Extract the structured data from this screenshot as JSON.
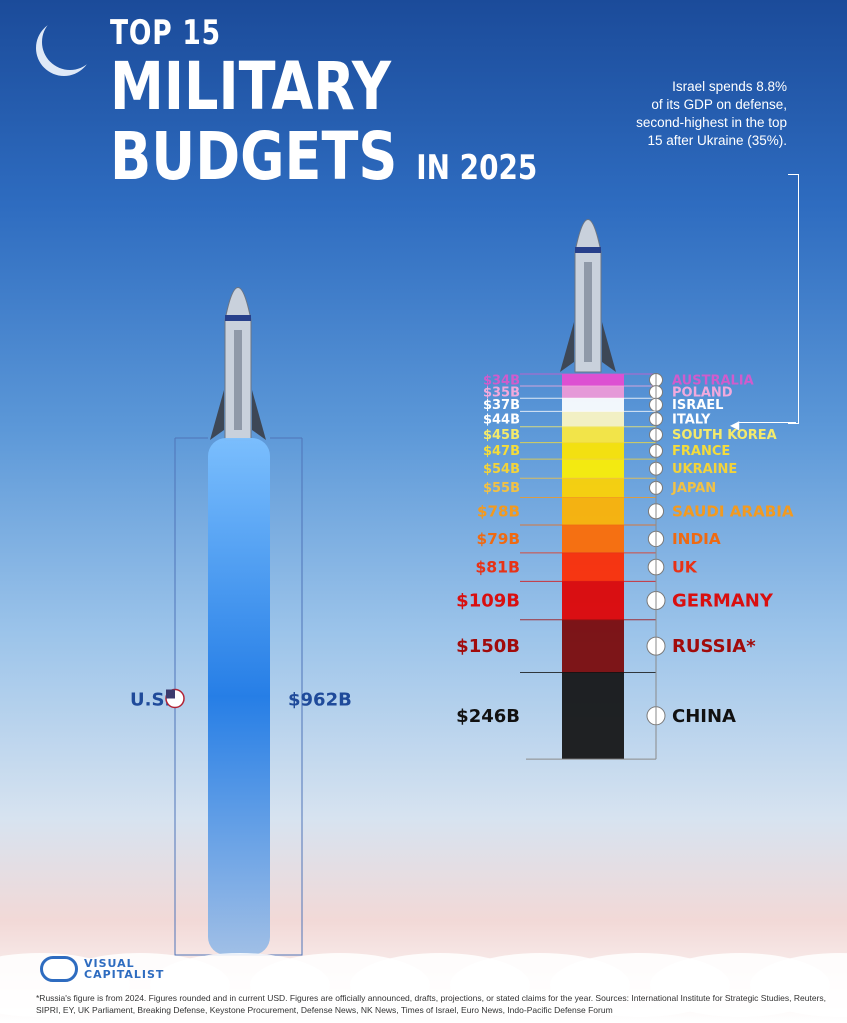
{
  "title": {
    "line1": "TOP 15",
    "line2": "MILITARY",
    "line3": "BUDGETS",
    "line3_small": "IN 2025"
  },
  "note": {
    "lines": [
      "Israel spends 8.8%",
      "of its GDP on defense,",
      "second-highest in the top",
      "15 after Ukraine (35%)."
    ]
  },
  "logo": {
    "line1": "VISUAL",
    "line2": "CAPITALIST"
  },
  "footnote": "*Russia's figure is from 2024. Figures rounded and in current USD. Figures are officially announced, drafts, projections, or stated claims for the year. Sources: International Institute for Strategic Studies, Reuters, SIPRI, EY, UK Parliament, Breaking Defense, Keystone Procurement, Defense News, NK News, Times of Israel, Euro News, Indo-Pacific Defense Forum",
  "chart_data": {
    "type": "bar",
    "unit": "USD billions",
    "us": {
      "country": "U.S.",
      "value": 962,
      "label": "$962B",
      "color": "#1f6fd6"
    },
    "stack": [
      {
        "country": "AUSTRALIA",
        "value": 34,
        "label": "$34B",
        "color": "#e94bd1"
      },
      {
        "country": "POLAND",
        "value": 35,
        "label": "$35B",
        "color": "#f29ad8"
      },
      {
        "country": "ISRAEL",
        "value": 37,
        "label": "$37B",
        "color": "#ffffff"
      },
      {
        "country": "ITALY",
        "value": 44,
        "label": "$44B",
        "color": "#fff7c2"
      },
      {
        "country": "SOUTH KOREA",
        "value": 45,
        "label": "$45B",
        "color": "#ffea3d"
      },
      {
        "country": "FRANCE",
        "value": 47,
        "label": "$47B",
        "color": "#ffe600"
      },
      {
        "country": "UKRAINE",
        "value": 54,
        "label": "$54B",
        "color": "#fff000"
      },
      {
        "country": "JAPAN",
        "value": 55,
        "label": "$55B",
        "color": "#ffd200"
      },
      {
        "country": "SAUDI ARABIA",
        "value": 78,
        "label": "$78B",
        "color": "#ffb300"
      },
      {
        "country": "INDIA",
        "value": 79,
        "label": "$79B",
        "color": "#ff6a00"
      },
      {
        "country": "UK",
        "value": 81,
        "label": "$81B",
        "color": "#ff2a00"
      },
      {
        "country": "GERMANY",
        "value": 109,
        "label": "$109B",
        "color": "#e00000"
      },
      {
        "country": "RUSSIA",
        "value": 150,
        "label": "$150B",
        "color": "#7a0505",
        "mark": "*"
      },
      {
        "country": "CHINA",
        "value": 246,
        "label": "$246B",
        "color": "#111111"
      }
    ],
    "label_colors": {
      "AUSTRALIA": "#d05ccc",
      "POLAND": "#f2a9dd",
      "ISRAEL": "#ffffff",
      "ITALY": "#ffffff",
      "SOUTH KOREA": "#f4ea6b",
      "FRANCE": "#f4dc3a",
      "UKRAINE": "#f2d33b",
      "JAPAN": "#f1c145",
      "SAUDI ARABIA": "#f39a1f",
      "INDIA": "#ef6a12",
      "UK": "#e83216",
      "GERMANY": "#d90f0f",
      "RUSSIA": "#a10b0b",
      "CHINA": "#111111"
    }
  }
}
